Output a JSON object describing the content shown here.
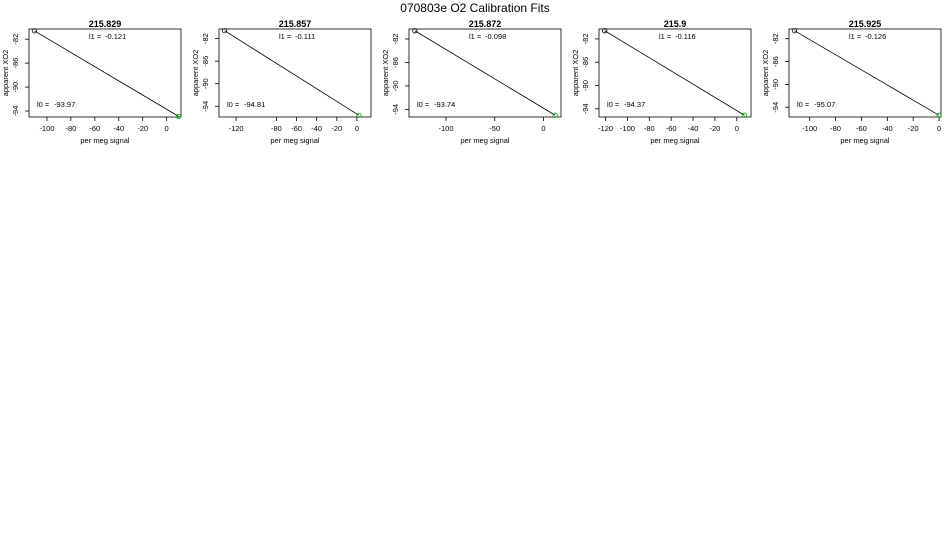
{
  "page": {
    "title": "070803e   O2 Calibration Fits"
  },
  "chart_data": [
    {
      "type": "scatter",
      "title": "215.829",
      "xlabel": "per meg signal",
      "ylabel": "apparent XO2",
      "xlim": [
        -115,
        12
      ],
      "ylim": [
        -95.0,
        -80.3
      ],
      "xticks": [
        -100,
        -80,
        -60,
        -40,
        -20,
        0
      ],
      "yticks": [
        -82,
        -86,
        -90,
        -94
      ],
      "fit": {
        "l1_label": "l1 =",
        "l1": "-0.121",
        "l0_label": "l0 =",
        "l0": "-93.97"
      },
      "points": [
        {
          "x": -110.5,
          "y": -80.6,
          "color": "#000000"
        },
        {
          "x": 10.0,
          "y": -94.9,
          "color": "#00aa00"
        }
      ]
    },
    {
      "type": "scatter",
      "title": "215.857",
      "xlabel": "per meg signal",
      "ylabel": "apparent XO2",
      "xlim": [
        -137,
        14
      ],
      "ylim": [
        -95.9,
        -80.3
      ],
      "xticks": [
        -120,
        -80,
        -60,
        -40,
        -20,
        0
      ],
      "yticks": [
        -82,
        -86,
        -90,
        -94
      ],
      "fit": {
        "l1_label": "l1 =",
        "l1": "-0.111",
        "l0_label": "l0 =",
        "l0": "-94.81"
      },
      "points": [
        {
          "x": -131.5,
          "y": -80.6,
          "color": "#000000"
        },
        {
          "x": 2.0,
          "y": -95.6,
          "color": "#00aa00"
        }
      ]
    },
    {
      "type": "scatter",
      "title": "215.872",
      "xlabel": "per meg signal",
      "ylabel": "apparent XO2",
      "xlim": [
        -138,
        18
      ],
      "ylim": [
        -95.3,
        -80.3
      ],
      "xticks": [
        -100,
        -50,
        0
      ],
      "yticks": [
        -82,
        -86,
        -90,
        -94
      ],
      "fit": {
        "l1_label": "l1 =",
        "l1": "-0.098",
        "l0_label": "l0 =",
        "l0": "-93.74"
      },
      "points": [
        {
          "x": -132.0,
          "y": -80.6,
          "color": "#000000"
        },
        {
          "x": 12.0,
          "y": -95.0,
          "color": "#00aa00"
        }
      ]
    },
    {
      "type": "scatter",
      "title": "215.9",
      "xlabel": "per meg signal",
      "ylabel": "apparent XO2",
      "xlim": [
        -126,
        13
      ],
      "ylim": [
        -95.4,
        -80.3
      ],
      "xticks": [
        -120,
        -100,
        -80,
        -60,
        -40,
        -20,
        0
      ],
      "yticks": [
        -82,
        -86,
        -90,
        -94
      ],
      "fit": {
        "l1_label": "l1 =",
        "l1": "-0.116",
        "l0_label": "l0 =",
        "l0": "-94.37"
      },
      "points": [
        {
          "x": -120.8,
          "y": -80.6,
          "color": "#000000"
        },
        {
          "x": 7.0,
          "y": -95.1,
          "color": "#00aa00"
        }
      ]
    },
    {
      "type": "scatter",
      "title": "215.925",
      "xlabel": "per meg signal",
      "ylabel": "apparent XO2",
      "xlim": [
        -116,
        1.5
      ],
      "ylim": [
        -95.7,
        -80.3
      ],
      "xticks": [
        -100,
        -80,
        -60,
        -40,
        -20,
        0
      ],
      "yticks": [
        -82,
        -86,
        -90,
        -94
      ],
      "fit": {
        "l1_label": "l1 =",
        "l1": "-0.126",
        "l0_label": "l0 =",
        "l0": "-95.07"
      },
      "points": [
        {
          "x": -111.8,
          "y": -80.6,
          "color": "#000000"
        },
        {
          "x": 0.0,
          "y": -95.4,
          "color": "#00aa00"
        }
      ]
    }
  ]
}
